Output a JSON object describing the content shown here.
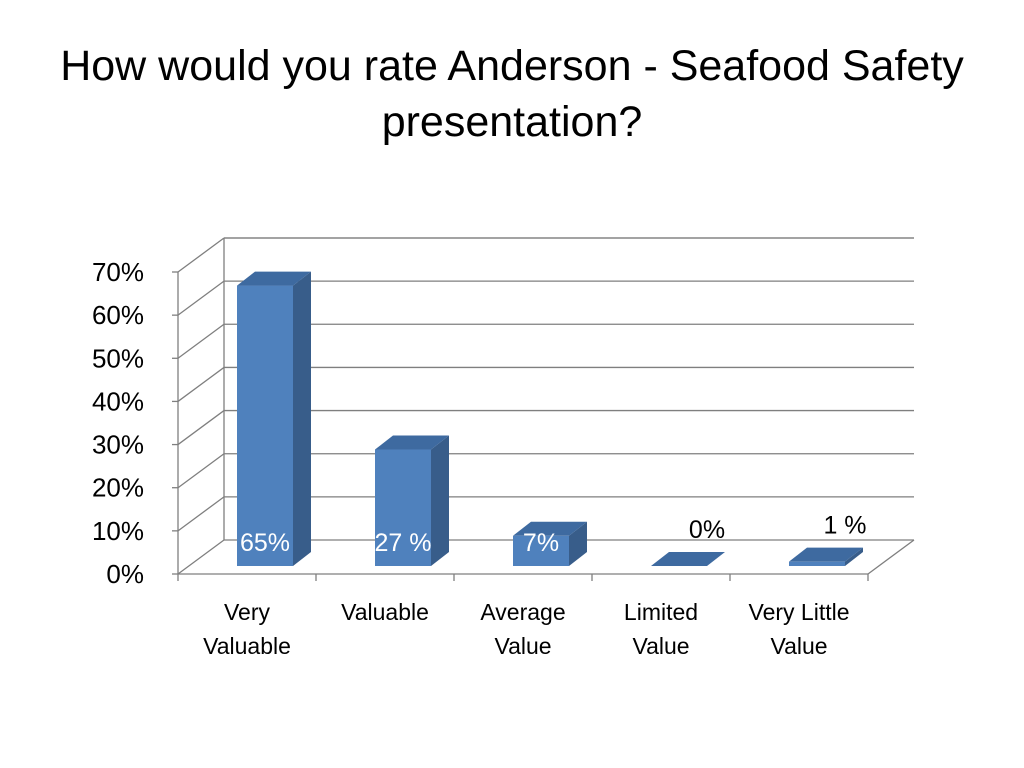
{
  "slide": {
    "title": "How would you rate  Anderson - Seafood Safety presentation?"
  },
  "chart_data": {
    "type": "bar",
    "style": "3d-column",
    "categories": [
      "Very\nValuable",
      "Valuable",
      "Average\nValue",
      "Limited\nValue",
      "Very Little\nValue"
    ],
    "values": [
      65,
      27,
      7,
      0,
      1
    ],
    "data_labels": [
      "65%",
      "27 %",
      "7%",
      "0%",
      "1 %"
    ],
    "ylim": [
      0,
      70
    ],
    "yticks": [
      "0%",
      "10%",
      "20%",
      "30%",
      "40%",
      "50%",
      "60%",
      "70%"
    ],
    "grid": true,
    "legend": "none",
    "colors": {
      "bar_front": "#4f81bd",
      "bar_side": "#385d8a",
      "bar_top": "#3e6aa0",
      "grid": "#7f7f7f",
      "label_inside": "#ffffff",
      "label_outside": "#000000"
    }
  }
}
